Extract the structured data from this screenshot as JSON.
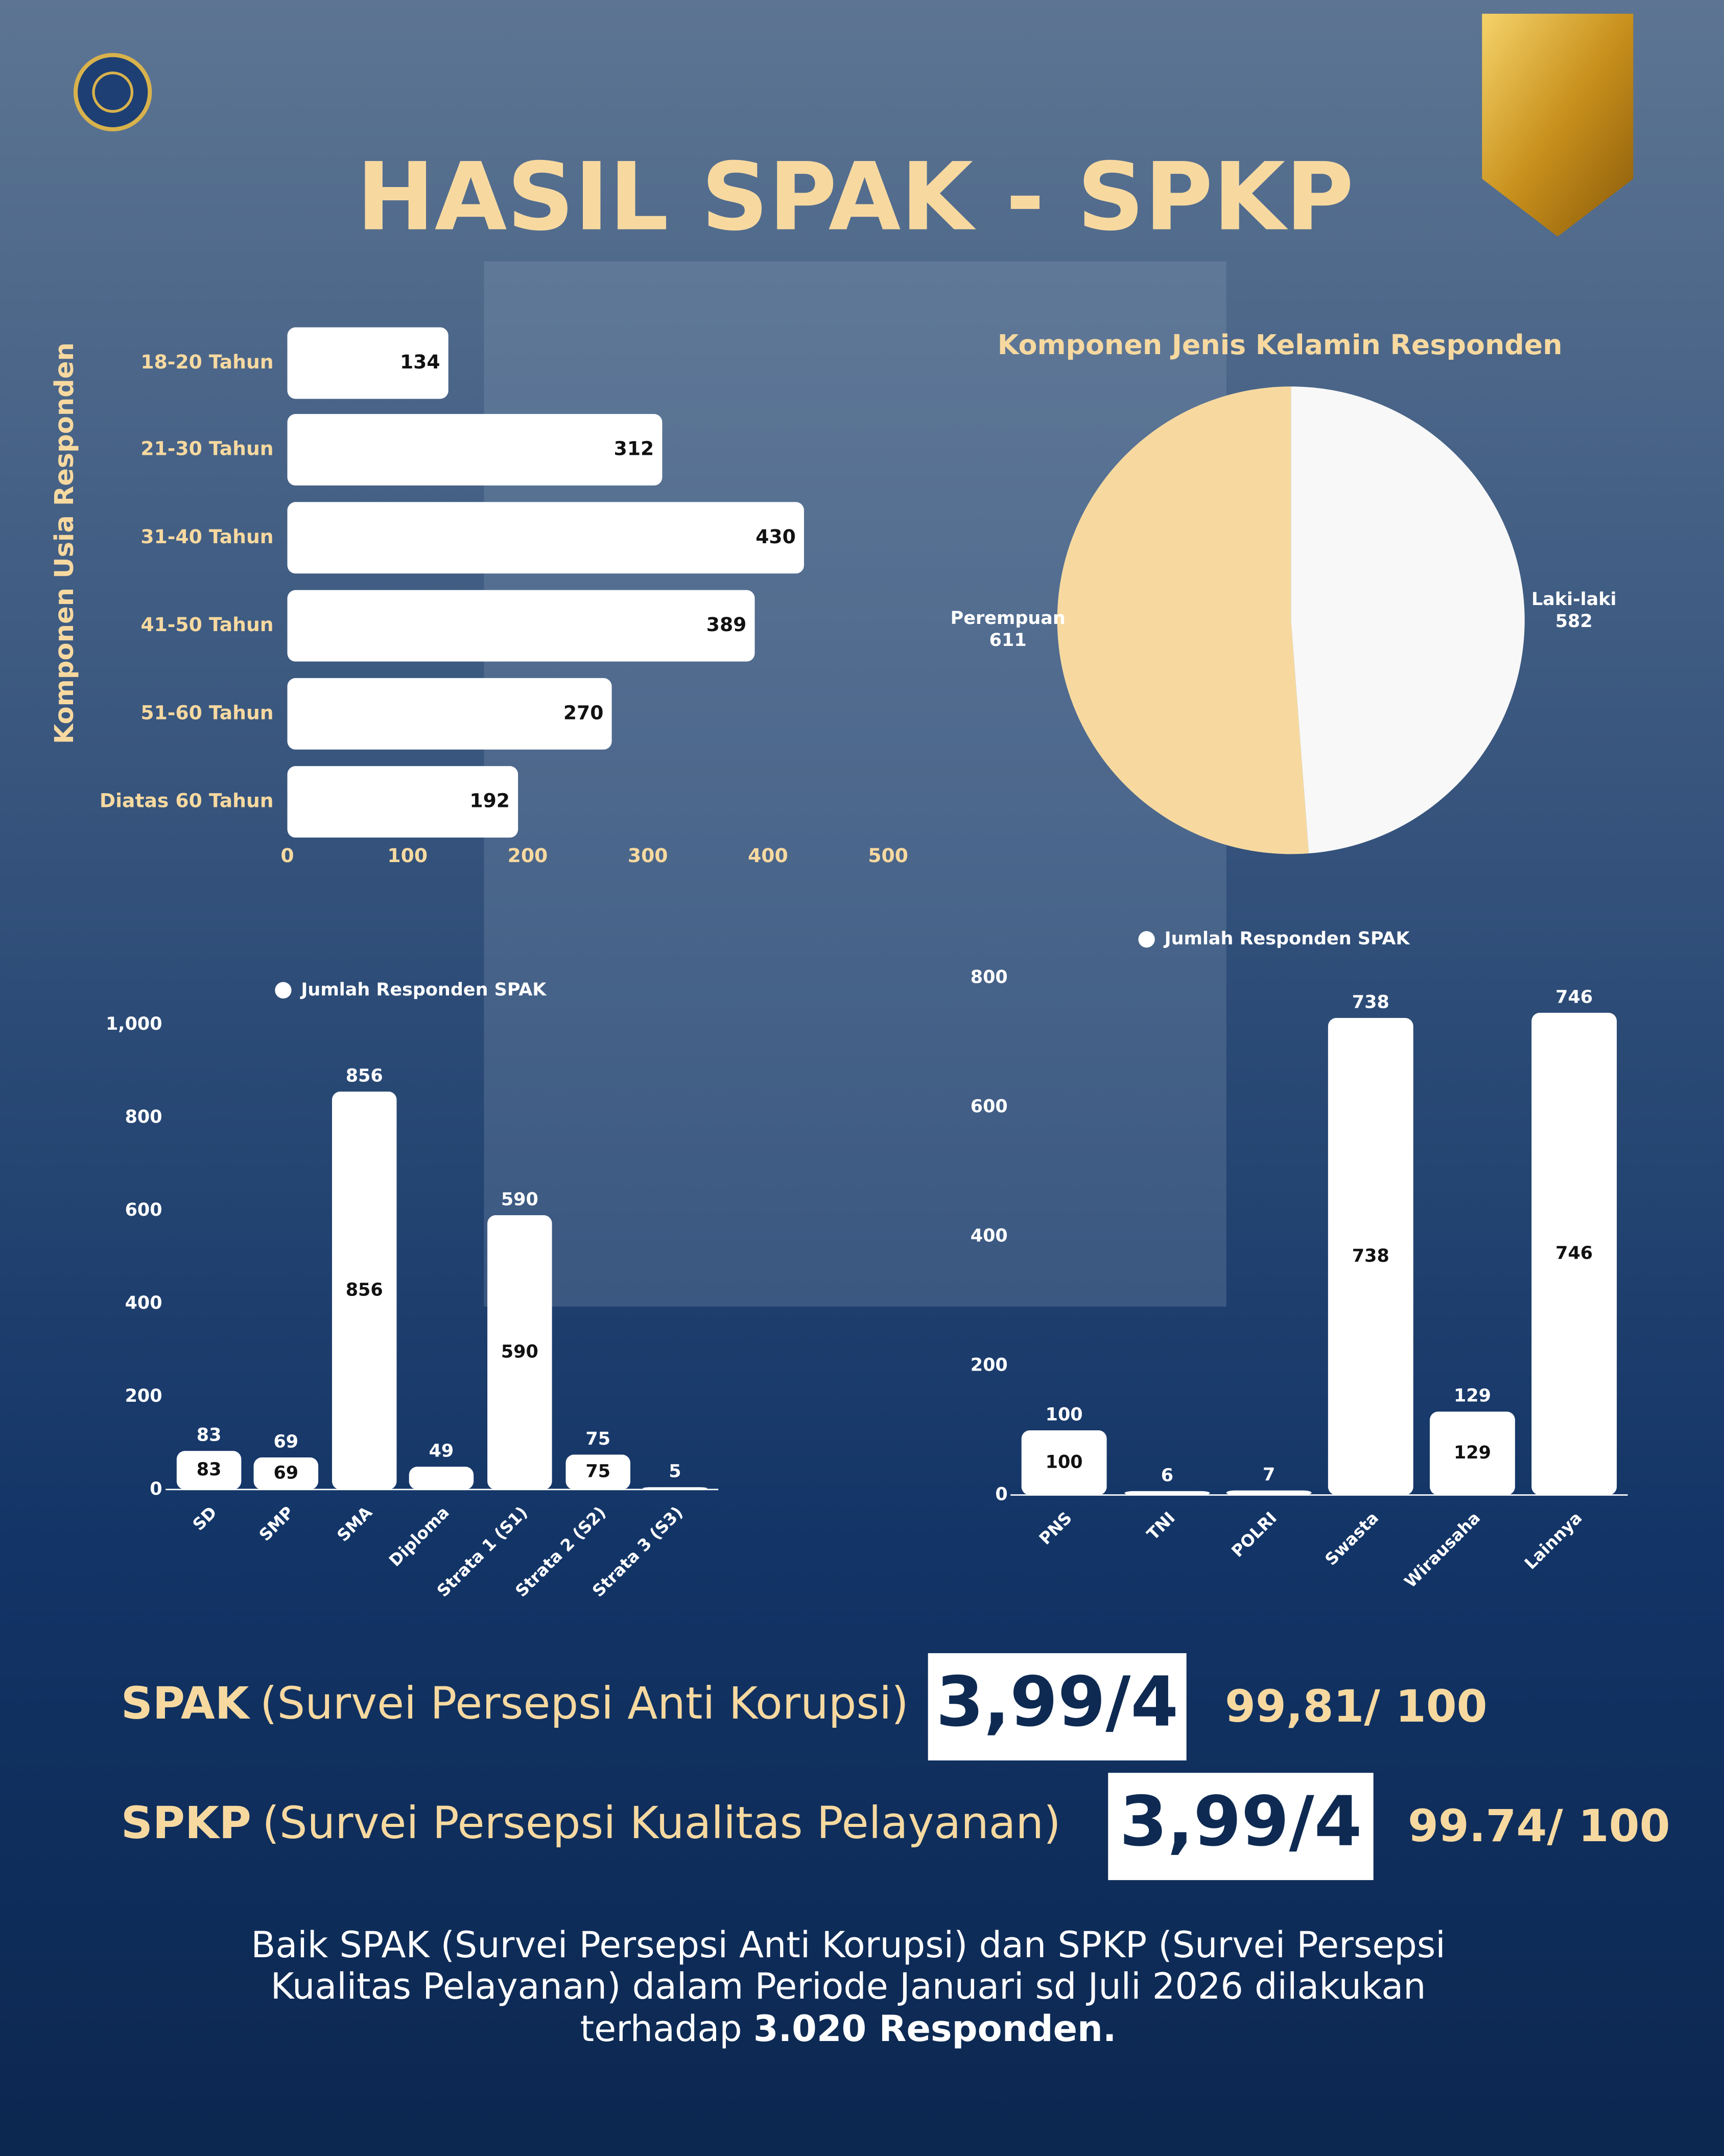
{
  "title": "HASIL SPAK - SPKP",
  "chart_data": [
    {
      "type": "hbar",
      "y_label": "Komponen Usia Responden",
      "categories": [
        "18-20 Tahun",
        "21-30 Tahun",
        "31-40 Tahun",
        "41-50 Tahun",
        "51-60 Tahun",
        "Diatas 60 Tahun"
      ],
      "values": [
        134,
        312,
        430,
        389,
        270,
        192
      ],
      "color": "#ffffff",
      "xlim": [
        0,
        500
      ],
      "xticks": [
        0,
        100,
        200,
        300,
        400,
        500
      ]
    },
    {
      "type": "pie",
      "title": "Komponen Jenis Kelamin Responden",
      "categories": [
        "Laki-laki",
        "Perempuan"
      ],
      "values": [
        582,
        611
      ],
      "colors": [
        "#f8f8f8",
        "#f7d9a0"
      ]
    },
    {
      "type": "bar",
      "series": [
        {
          "name": "Jumlah Responden SPAK",
          "color": "#ffffff",
          "values": [
            83,
            69,
            856,
            49,
            590,
            75,
            5
          ]
        }
      ],
      "categories": [
        "SD",
        "SMP",
        "SMA",
        "Diploma",
        "Strata 1 (S1)",
        "Strata 2 (S2)",
        "Strata 3 (S3)"
      ],
      "ylim": [
        0,
        1000
      ],
      "yticks": [
        0,
        200,
        400,
        600,
        800,
        {
          "value": 1000,
          "label": "1,000"
        }
      ]
    },
    {
      "type": "bar",
      "series": [
        {
          "name": "Jumlah Responden SPAK",
          "color": "#ffffff",
          "values": [
            100,
            6,
            7,
            738,
            129,
            746
          ]
        }
      ],
      "categories": [
        "PNS",
        "TNI",
        "POLRI",
        "Swasta",
        "Wirausaha",
        "Lainnya"
      ],
      "ylim": [
        0,
        800
      ],
      "yticks": [
        0,
        200,
        400,
        600,
        800
      ]
    }
  ],
  "scores": [
    {
      "code": "SPAK",
      "name": "(Survei Persepsi Anti Korupsi)",
      "score": "3,99/4",
      "index": "99,81/ 100"
    },
    {
      "code": "SPKP",
      "name": "(Survei Persepsi  Kualitas Pelayanan)",
      "score": "3,99/4",
      "index": "99.74/ 100"
    }
  ],
  "footer": {
    "lines": [
      "Baik SPAK (Survei Persepsi Anti Korupsi) dan SPKP (Survei Persepsi",
      "Kualitas Pelayanan) dalam Periode Januari sd Juli 2026 dilakukan",
      "terhadap "
    ],
    "bold": "3.020 Responden."
  }
}
